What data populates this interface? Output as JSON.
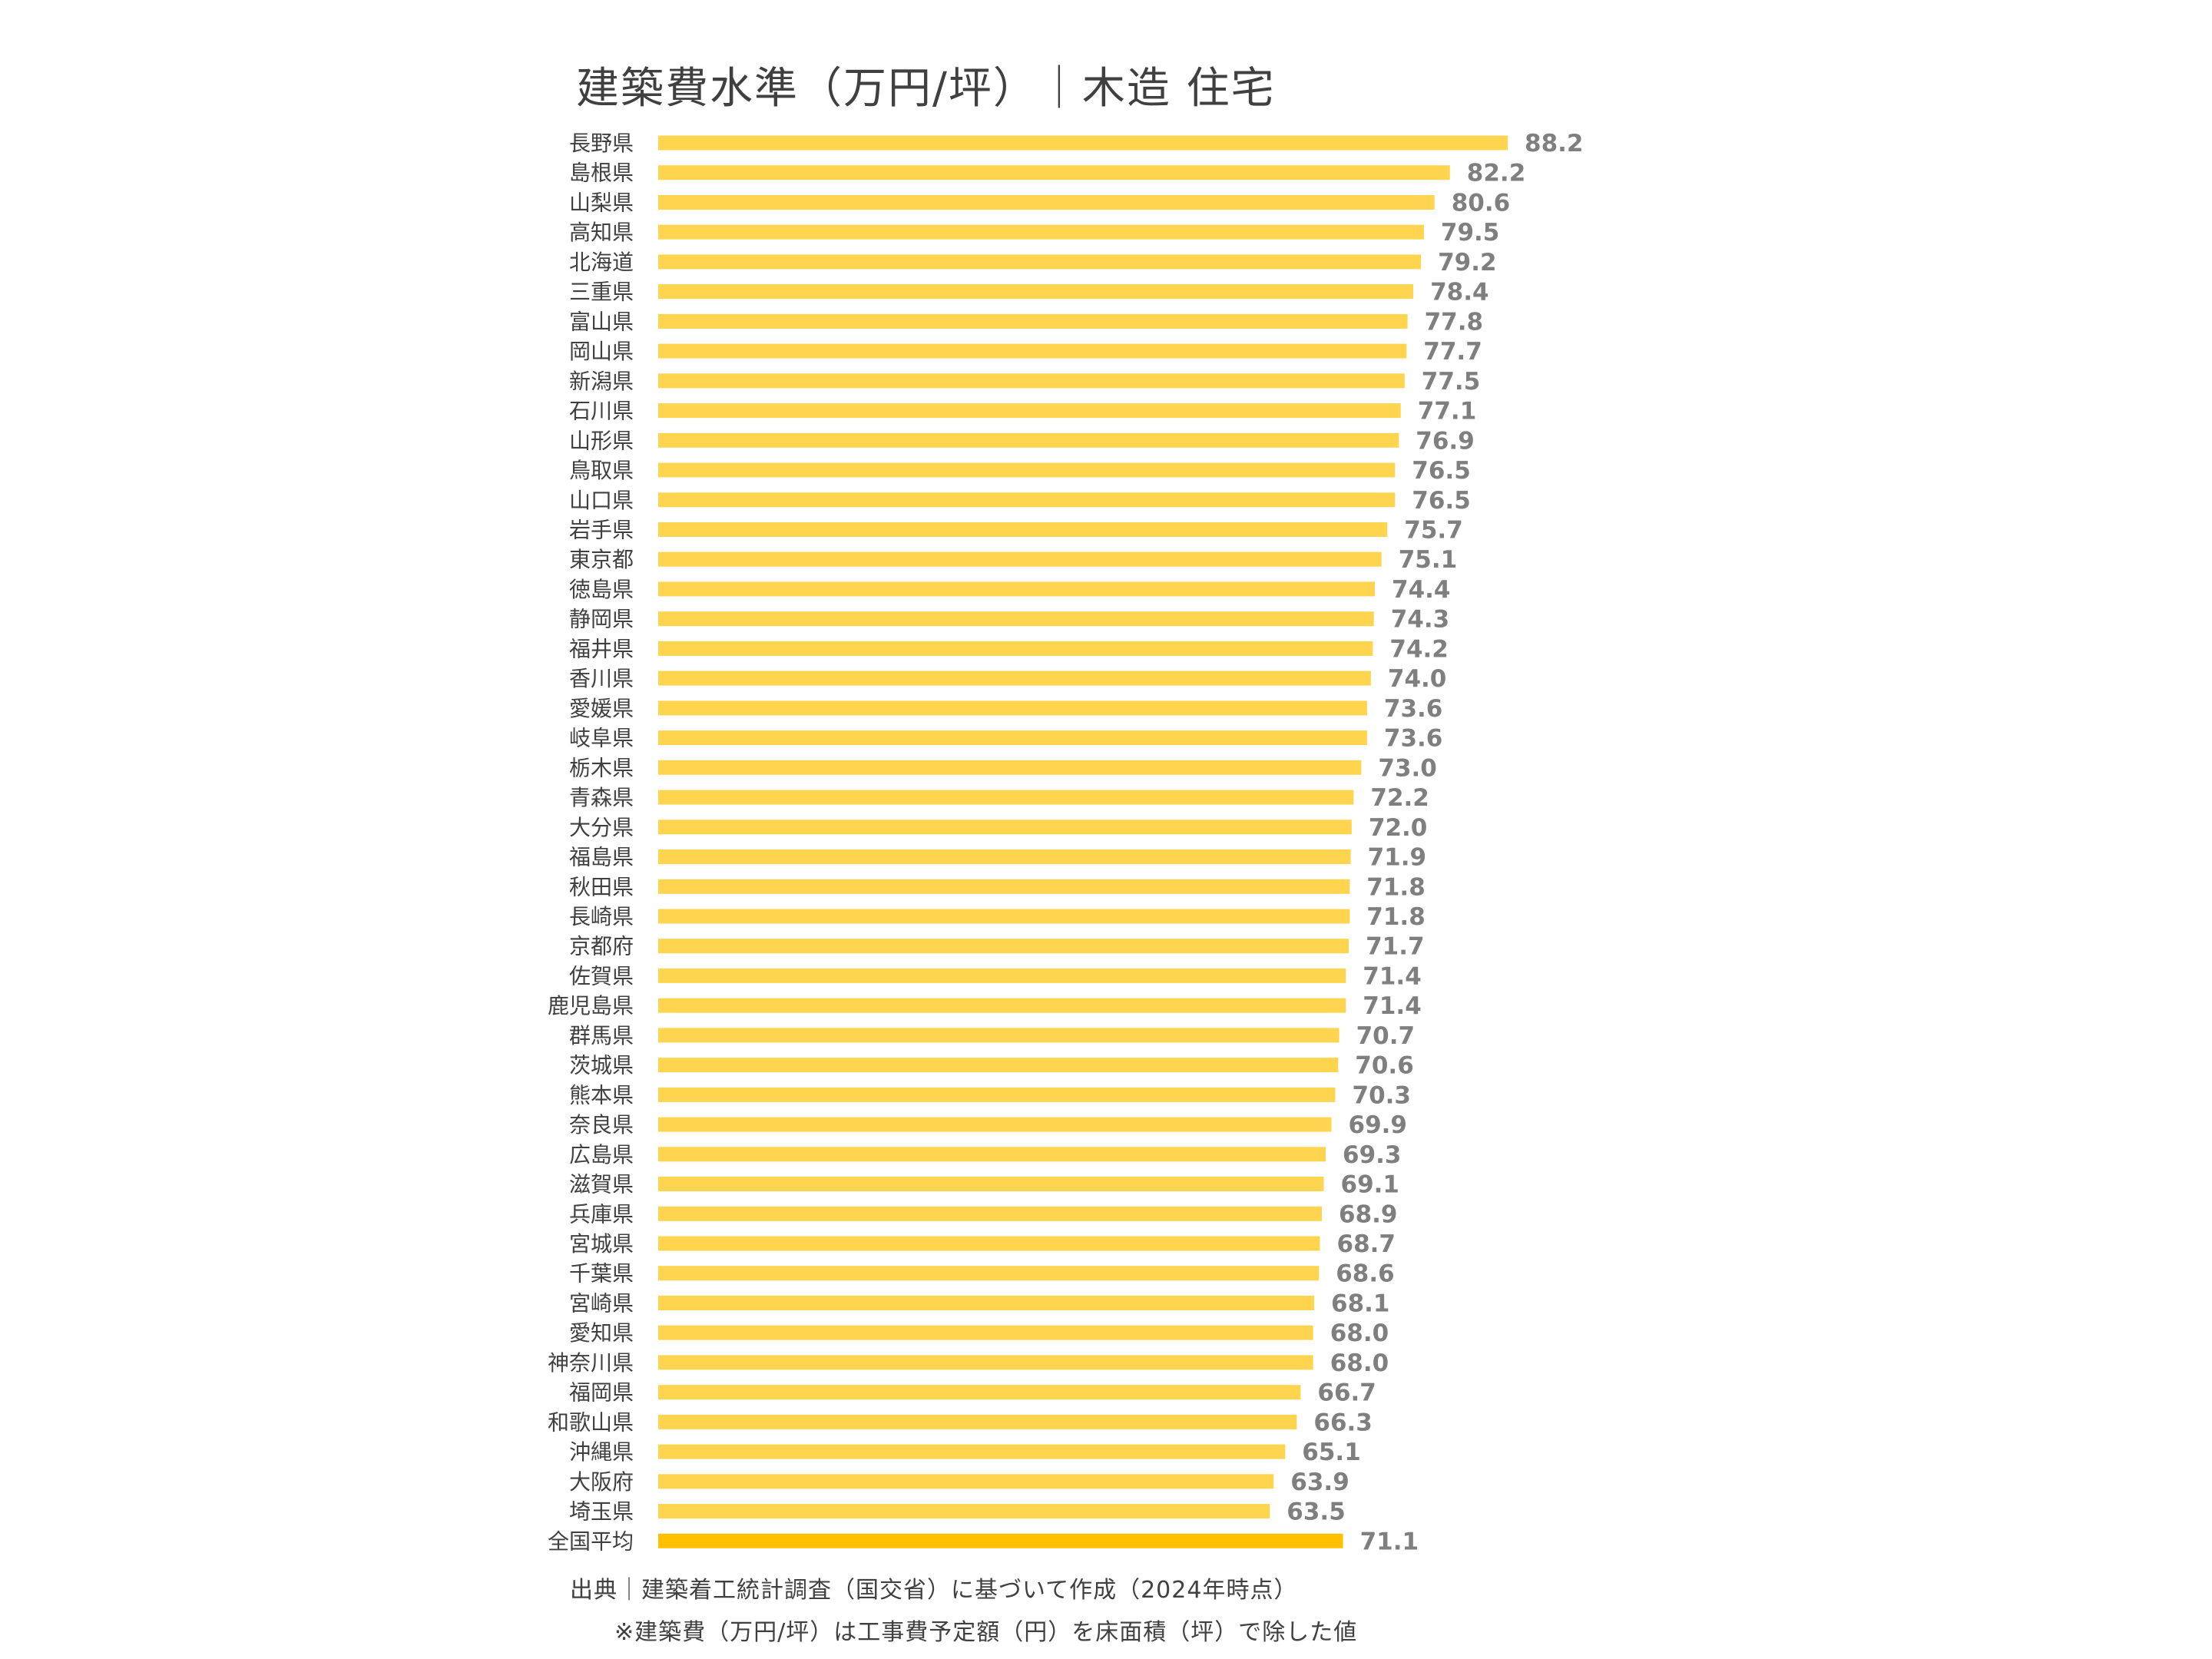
{
  "chart_data": {
    "type": "bar",
    "orientation": "horizontal",
    "title": "建築費水準（万円/坪）｜木造 住宅",
    "categories": [
      "長野県",
      "島根県",
      "山梨県",
      "高知県",
      "北海道",
      "三重県",
      "富山県",
      "岡山県",
      "新潟県",
      "石川県",
      "山形県",
      "鳥取県",
      "山口県",
      "岩手県",
      "東京都",
      "徳島県",
      "静岡県",
      "福井県",
      "香川県",
      "愛媛県",
      "岐阜県",
      "栃木県",
      "青森県",
      "大分県",
      "福島県",
      "秋田県",
      "長崎県",
      "京都府",
      "佐賀県",
      "鹿児島県",
      "群馬県",
      "茨城県",
      "熊本県",
      "奈良県",
      "広島県",
      "滋賀県",
      "兵庫県",
      "宮城県",
      "千葉県",
      "宮崎県",
      "愛知県",
      "神奈川県",
      "福岡県",
      "和歌山県",
      "沖縄県",
      "大阪府",
      "埼玉県",
      "全国平均"
    ],
    "values": [
      88.2,
      82.2,
      80.6,
      79.5,
      79.2,
      78.4,
      77.8,
      77.7,
      77.5,
      77.1,
      76.9,
      76.5,
      76.5,
      75.7,
      75.1,
      74.4,
      74.3,
      74.2,
      74.0,
      73.6,
      73.6,
      73.0,
      72.2,
      72.0,
      71.9,
      71.8,
      71.8,
      71.7,
      71.4,
      71.4,
      70.7,
      70.6,
      70.3,
      69.9,
      69.3,
      69.1,
      68.9,
      68.7,
      68.6,
      68.1,
      68.0,
      68.0,
      66.7,
      66.3,
      65.1,
      63.9,
      63.5,
      71.1
    ],
    "value_labels": [
      "88.2",
      "82.2",
      "80.6",
      "79.5",
      "79.2",
      "78.4",
      "77.8",
      "77.7",
      "77.5",
      "77.1",
      "76.9",
      "76.5",
      "76.5",
      "75.7",
      "75.1",
      "74.4",
      "74.3",
      "74.2",
      "74.0",
      "73.6",
      "73.6",
      "73.0",
      "72.2",
      "72.0",
      "71.9",
      "71.8",
      "71.8",
      "71.7",
      "71.4",
      "71.4",
      "70.7",
      "70.6",
      "70.3",
      "69.9",
      "69.3",
      "69.1",
      "68.9",
      "68.7",
      "68.6",
      "68.1",
      "68.0",
      "68.0",
      "66.7",
      "66.3",
      "65.1",
      "63.9",
      "63.5",
      "71.1"
    ],
    "highlight_category": "全国平均",
    "xlim": [
      0,
      88.2
    ],
    "grid": false,
    "legend": "none",
    "colors": {
      "bar": "#FFD54F",
      "highlight_bar": "#FFC000",
      "value_label": "#7F7F7F",
      "text": "#404040"
    }
  },
  "notes": {
    "source": "出典｜建築着工統計調査（国交省）に基づいて作成（2024年時点）",
    "method": "※建築費（万円/坪）は工事費予定額（円）を床面積（坪）で除した値"
  }
}
